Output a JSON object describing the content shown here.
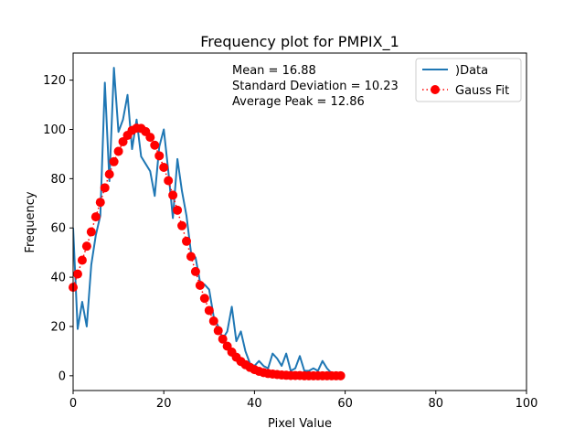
{
  "chart_data": {
    "type": "line",
    "title": "Frequency plot for PMPIX_1",
    "xlabel": "Pixel Value",
    "ylabel": "Frequency",
    "xlim": [
      0,
      100
    ],
    "ylim": [
      -6,
      131
    ],
    "xticks": [
      0,
      20,
      40,
      60,
      80,
      100
    ],
    "yticks": [
      0,
      20,
      40,
      60,
      80,
      100,
      120
    ],
    "grid": false,
    "legend_position": "top-right",
    "annotations": [
      "Mean = 16.88",
      "Standard Deviation = 10.23",
      "Average Peak = 12.86"
    ],
    "series": [
      {
        "name": ")Data",
        "style": "line",
        "color": "#1f77b4",
        "x": [
          0,
          1,
          2,
          3,
          4,
          5,
          6,
          7,
          8,
          9,
          10,
          11,
          12,
          13,
          14,
          15,
          16,
          17,
          18,
          19,
          20,
          21,
          22,
          23,
          24,
          25,
          26,
          27,
          28,
          29,
          30,
          31,
          32,
          33,
          34,
          35,
          36,
          37,
          38,
          39,
          40,
          41,
          42,
          43,
          44,
          45,
          46,
          47,
          48,
          49,
          50,
          51,
          52,
          53,
          54,
          55,
          56,
          57,
          58,
          59
        ],
        "y": [
          60,
          19,
          30,
          20,
          45,
          57,
          65,
          119,
          79,
          125,
          99,
          104,
          114,
          92,
          104,
          89,
          86,
          83,
          73,
          93,
          100,
          83,
          64,
          88,
          75,
          65,
          50,
          48,
          38,
          37,
          35,
          24,
          20,
          15,
          18,
          28,
          14,
          18,
          10,
          5,
          4,
          6,
          4,
          3,
          9,
          7,
          4,
          9,
          2,
          3,
          8,
          2,
          2,
          3,
          2,
          6,
          3,
          1,
          0,
          0
        ]
      },
      {
        "name": "Gauss Fit",
        "style": "dotted-markers",
        "color": "#ff0000",
        "x": [
          0,
          1,
          2,
          3,
          4,
          5,
          6,
          7,
          8,
          9,
          10,
          11,
          12,
          13,
          14,
          15,
          16,
          17,
          18,
          19,
          20,
          21,
          22,
          23,
          24,
          25,
          26,
          27,
          28,
          29,
          30,
          31,
          32,
          33,
          34,
          35,
          36,
          37,
          38,
          39,
          40,
          41,
          42,
          43,
          44,
          45,
          46,
          47,
          48,
          49,
          50,
          51,
          52,
          53,
          54,
          55,
          56,
          57,
          58,
          59
        ],
        "y": [
          35.9,
          41.3,
          46.9,
          52.6,
          58.4,
          64.5,
          70.4,
          76.3,
          81.8,
          86.9,
          91.1,
          95.0,
          97.6,
          99.6,
          100.5,
          100.4,
          99.1,
          96.8,
          93.6,
          89.3,
          84.6,
          79.2,
          73.3,
          67.2,
          60.9,
          54.6,
          48.4,
          42.3,
          36.7,
          31.4,
          26.5,
          22.2,
          18.3,
          14.9,
          12.0,
          9.6,
          7.5,
          5.8,
          4.5,
          3.4,
          2.5,
          1.8,
          1.3,
          0.9,
          0.7,
          0.5,
          0.3,
          0.2,
          0.1,
          0.1,
          0.1,
          0,
          0,
          0,
          0,
          0,
          0,
          0,
          0,
          0
        ]
      }
    ]
  }
}
